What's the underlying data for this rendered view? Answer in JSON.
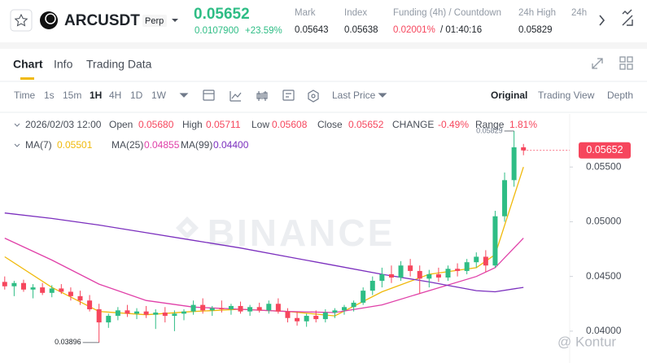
{
  "header": {
    "symbol": "ARCUSDT",
    "contract": "Perp",
    "last_price": "0.05652",
    "change_abs": "0.0107900",
    "change_pct": "+23.59%",
    "stats": [
      {
        "label": "Mark",
        "value": "0.05643"
      },
      {
        "label": "Index",
        "value": "0.05638"
      },
      {
        "label": "Funding (4h) / Countdown",
        "value": "0.02001%",
        "value2": "/ 01:40:16"
      },
      {
        "label": "24h High",
        "value": "0.05829"
      },
      {
        "label": "24h"
      }
    ]
  },
  "tabs": [
    "Chart",
    "Info",
    "Trading Data"
  ],
  "toolbar": {
    "intervals": [
      "Time",
      "1s",
      "15m",
      "1H",
      "4H",
      "1D",
      "1W"
    ],
    "price_type": "Last Price",
    "views": [
      "Original",
      "Trading View",
      "Depth"
    ]
  },
  "chart_data": {
    "type": "candlestick",
    "info": {
      "date": "2026/02/03 12:00",
      "fields": [
        {
          "label": "Open",
          "value": "0.05680"
        },
        {
          "label": "High",
          "value": "0.05711"
        },
        {
          "label": "Low",
          "value": "0.05608"
        },
        {
          "label": "Close",
          "value": "0.05652"
        },
        {
          "label": "CHANGE",
          "value": "-0.49%"
        },
        {
          "label": "Range",
          "value": "1.81%"
        }
      ]
    },
    "up_color": "#2ebd85",
    "down_color": "#f6465d",
    "candles": {
      "open": [
        0.0445,
        0.0441,
        0.0444,
        0.0438,
        0.044,
        0.0435,
        0.0439,
        0.0436,
        0.0432,
        0.0428,
        0.042,
        0.0408,
        0.0414,
        0.0419,
        0.0416,
        0.0418,
        0.0415,
        0.0417,
        0.0414,
        0.0416,
        0.0418,
        0.0424,
        0.0419,
        0.0421,
        0.042,
        0.0423,
        0.0418,
        0.0422,
        0.0419,
        0.0425,
        0.0418,
        0.0412,
        0.0409,
        0.0414,
        0.0411,
        0.0417,
        0.0419,
        0.0422,
        0.0426,
        0.0437,
        0.0446,
        0.0452,
        0.0449,
        0.046,
        0.0455,
        0.0448,
        0.0452,
        0.0449,
        0.0457,
        0.0455,
        0.0463,
        0.0468,
        0.046,
        0.0505,
        0.0538,
        0.0568
      ],
      "high": [
        0.045,
        0.0446,
        0.0447,
        0.0443,
        0.0444,
        0.0442,
        0.0443,
        0.044,
        0.0437,
        0.0433,
        0.0425,
        0.0416,
        0.0422,
        0.0424,
        0.0421,
        0.0423,
        0.042,
        0.0422,
        0.0419,
        0.042,
        0.0428,
        0.043,
        0.0423,
        0.0428,
        0.0425,
        0.0427,
        0.0424,
        0.0426,
        0.0428,
        0.043,
        0.0421,
        0.0418,
        0.0416,
        0.0419,
        0.042,
        0.0421,
        0.0424,
        0.0428,
        0.044,
        0.045,
        0.0458,
        0.046,
        0.0464,
        0.0466,
        0.046,
        0.0456,
        0.0458,
        0.046,
        0.0462,
        0.0466,
        0.0472,
        0.0474,
        0.051,
        0.0545,
        0.05829,
        0.05711
      ],
      "low": [
        0.0438,
        0.0432,
        0.0436,
        0.043,
        0.0433,
        0.0431,
        0.0434,
        0.0428,
        0.0424,
        0.0418,
        0.03896,
        0.0403,
        0.041,
        0.0413,
        0.0411,
        0.0412,
        0.0402,
        0.0408,
        0.04,
        0.041,
        0.0415,
        0.0416,
        0.0414,
        0.0417,
        0.0415,
        0.0416,
        0.0414,
        0.0417,
        0.0416,
        0.0416,
        0.0408,
        0.0405,
        0.0404,
        0.0408,
        0.0408,
        0.0412,
        0.0415,
        0.0418,
        0.0424,
        0.0433,
        0.044,
        0.0444,
        0.0446,
        0.045,
        0.0434,
        0.044,
        0.0445,
        0.0446,
        0.045,
        0.0452,
        0.0458,
        0.0454,
        0.0458,
        0.05,
        0.0532,
        0.05608
      ],
      "close": [
        0.0441,
        0.0444,
        0.0438,
        0.044,
        0.0435,
        0.0439,
        0.0436,
        0.0432,
        0.0428,
        0.042,
        0.0408,
        0.0414,
        0.0419,
        0.0416,
        0.0418,
        0.0415,
        0.0417,
        0.0414,
        0.0416,
        0.0418,
        0.0424,
        0.0419,
        0.0421,
        0.042,
        0.0423,
        0.0418,
        0.0422,
        0.0419,
        0.0425,
        0.0418,
        0.0412,
        0.0409,
        0.0414,
        0.0411,
        0.0417,
        0.0419,
        0.0422,
        0.0426,
        0.0437,
        0.0446,
        0.0452,
        0.0449,
        0.046,
        0.0455,
        0.0448,
        0.0452,
        0.0449,
        0.0457,
        0.0455,
        0.0463,
        0.0468,
        0.046,
        0.0505,
        0.0538,
        0.0568,
        0.05652
      ]
    },
    "series": [
      {
        "name": "MA(7)",
        "value_label": "0.05501",
        "color": "#f0b90b",
        "x": [
          0,
          5,
          10,
          15,
          20,
          25,
          30,
          35,
          40,
          45,
          50,
          52,
          55
        ],
        "values": [
          0.0468,
          0.044,
          0.0418,
          0.0415,
          0.0418,
          0.042,
          0.0418,
          0.0414,
          0.0436,
          0.0452,
          0.0458,
          0.047,
          0.055
        ]
      },
      {
        "name": "MA(25)",
        "value_label": "0.04855",
        "color": "#e040a8",
        "x": [
          0,
          5,
          10,
          15,
          20,
          25,
          30,
          35,
          40,
          45,
          50,
          52,
          55
        ],
        "values": [
          0.0485,
          0.0465,
          0.0443,
          0.0428,
          0.0422,
          0.042,
          0.0418,
          0.0417,
          0.0424,
          0.0437,
          0.045,
          0.0458,
          0.0485
        ]
      },
      {
        "name": "MA(99)",
        "value_label": "0.04400",
        "color": "#7b2fbe",
        "x": [
          0,
          5,
          10,
          15,
          20,
          25,
          30,
          35,
          40,
          45,
          50,
          52,
          55
        ],
        "values": [
          0.0508,
          0.0503,
          0.0497,
          0.049,
          0.0483,
          0.0476,
          0.0468,
          0.046,
          0.0452,
          0.0445,
          0.0437,
          0.0436,
          0.044
        ]
      }
    ],
    "xlim": [
      -0.5,
      59.9
    ],
    "ylim": [
      0.03709,
      0.05985
    ],
    "yticks": [
      {
        "value": 0.055,
        "label": "0.05500"
      },
      {
        "value": 0.05,
        "label": "0.05000"
      },
      {
        "value": 0.045,
        "label": "0.04500"
      },
      {
        "value": 0.04,
        "label": "0.04000"
      }
    ],
    "low_label": "0.03896",
    "high_label": "0.05829",
    "price_tag": "0.05652",
    "watermark": "BINANCE",
    "overlay_mark": "@ Kontur"
  }
}
